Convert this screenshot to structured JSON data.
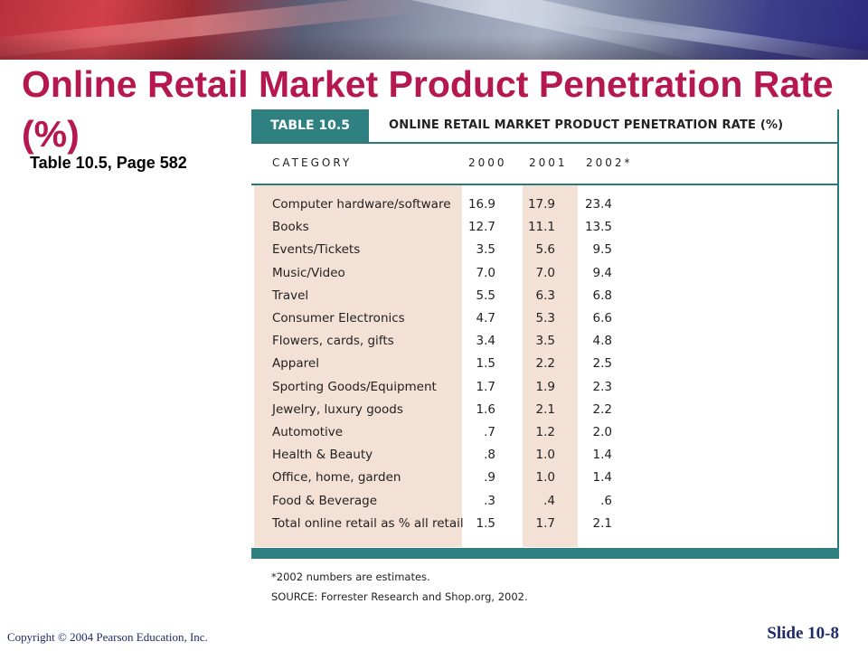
{
  "slide": {
    "title": "Online Retail Market Product Penetration Rate (%)",
    "subtitle": "Table 10.5, Page 582",
    "copyright": "Copyright © 2004 Pearson Education, Inc.",
    "slide_number": "Slide 10-8"
  },
  "table": {
    "tag": "TABLE 10.5",
    "title": "ONLINE RETAIL MARKET PRODUCT PENETRATION RATE (%)",
    "headers": [
      "CATEGORY",
      "2000",
      "2001",
      "2002*"
    ],
    "rows": [
      {
        "category": "Computer hardware/software",
        "v2000": "16.9",
        "v2001": "17.9",
        "v2002": "23.4"
      },
      {
        "category": "Books",
        "v2000": "12.7",
        "v2001": "11.1",
        "v2002": "13.5"
      },
      {
        "category": "Events/Tickets",
        "v2000": "3.5",
        "v2001": "5.6",
        "v2002": "9.5"
      },
      {
        "category": "Music/Video",
        "v2000": "7.0",
        "v2001": "7.0",
        "v2002": "9.4"
      },
      {
        "category": "Travel",
        "v2000": "5.5",
        "v2001": "6.3",
        "v2002": "6.8"
      },
      {
        "category": "Consumer Electronics",
        "v2000": "4.7",
        "v2001": "5.3",
        "v2002": "6.6"
      },
      {
        "category": "Flowers, cards, gifts",
        "v2000": "3.4",
        "v2001": "3.5",
        "v2002": "4.8"
      },
      {
        "category": "Apparel",
        "v2000": "1.5",
        "v2001": "2.2",
        "v2002": "2.5"
      },
      {
        "category": "Sporting Goods/Equipment",
        "v2000": "1.7",
        "v2001": "1.9",
        "v2002": "2.3"
      },
      {
        "category": "Jewelry, luxury goods",
        "v2000": "1.6",
        "v2001": "2.1",
        "v2002": "2.2"
      },
      {
        "category": "Automotive",
        "v2000": ".7",
        "v2001": "1.2",
        "v2002": "2.0"
      },
      {
        "category": "Health & Beauty",
        "v2000": ".8",
        "v2001": "1.0",
        "v2002": "1.4"
      },
      {
        "category": "Office, home, garden",
        "v2000": ".9",
        "v2001": "1.0",
        "v2002": "1.4"
      },
      {
        "category": "Food & Beverage",
        "v2000": ".3",
        "v2001": ".4",
        "v2002": ".6"
      },
      {
        "category": "Total online retail as % all retail",
        "v2000": "1.5",
        "v2001": "1.7",
        "v2002": "2.1"
      }
    ],
    "footnote": "*2002 numbers are estimates.",
    "source": "SOURCE: Forrester Research and Shop.org, 2002."
  },
  "colors": {
    "title": "#b5184f",
    "teal": "#2f8080",
    "shade": "#f4e1d6",
    "footer": "#1f2a6b"
  }
}
